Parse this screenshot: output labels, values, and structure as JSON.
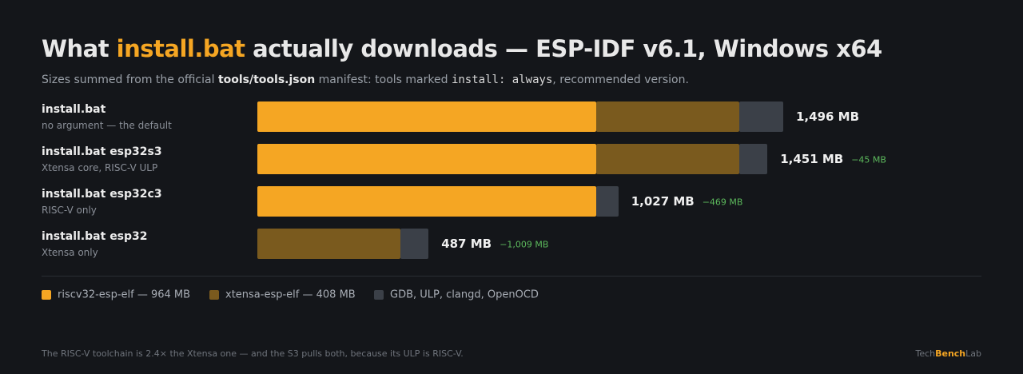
{
  "chart_data": {
    "type": "stacked-bar-horizontal",
    "title": [
      "What ",
      "install.bat",
      " actually downloads — ESP-IDF v6.1, Windows x64"
    ],
    "subtitle": [
      "Sizes summed from the official ",
      "tools/tools.json",
      " manifest: tools marked ",
      "install: always",
      ", recommended version."
    ],
    "categories": [
      "install.bat",
      "install.bat esp32s3",
      "install.bat esp32c3",
      "install.bat esp32"
    ],
    "category_notes": [
      "no argument — the default",
      "Xtensa core, RISC-V ULP",
      "RISC-V only",
      "Xtensa only"
    ],
    "series": [
      {
        "name": "riscv32-esp-elf — 964 MB",
        "color": "#f5a623",
        "values": [
          964,
          964,
          964,
          null
        ]
      },
      {
        "name": "xtensa-esp-elf — 408 MB",
        "color": "#7a5a1e",
        "values": [
          408,
          408,
          null,
          408
        ]
      },
      {
        "name": "GDB, ULP, clangd, OpenOCD",
        "color": "#3b4048",
        "values": [
          124,
          79,
          63,
          79
        ]
      }
    ],
    "totals": [
      1496,
      1451,
      1027,
      487
    ],
    "total_labels": [
      "1,496 MB",
      "1,451 MB",
      "1,027 MB",
      "487 MB"
    ],
    "deltas": [
      null,
      -45,
      -469,
      -1009
    ],
    "delta_labels": [
      null,
      "−45 MB",
      "−469 MB",
      "−1,009 MB"
    ],
    "footnote": "The RISC-V toolchain is 2.4× the Xtensa one — and the S3 pulls both, because its ULP is RISC-V.",
    "brand": [
      "Tech",
      "Bench",
      "Lab"
    ]
  }
}
